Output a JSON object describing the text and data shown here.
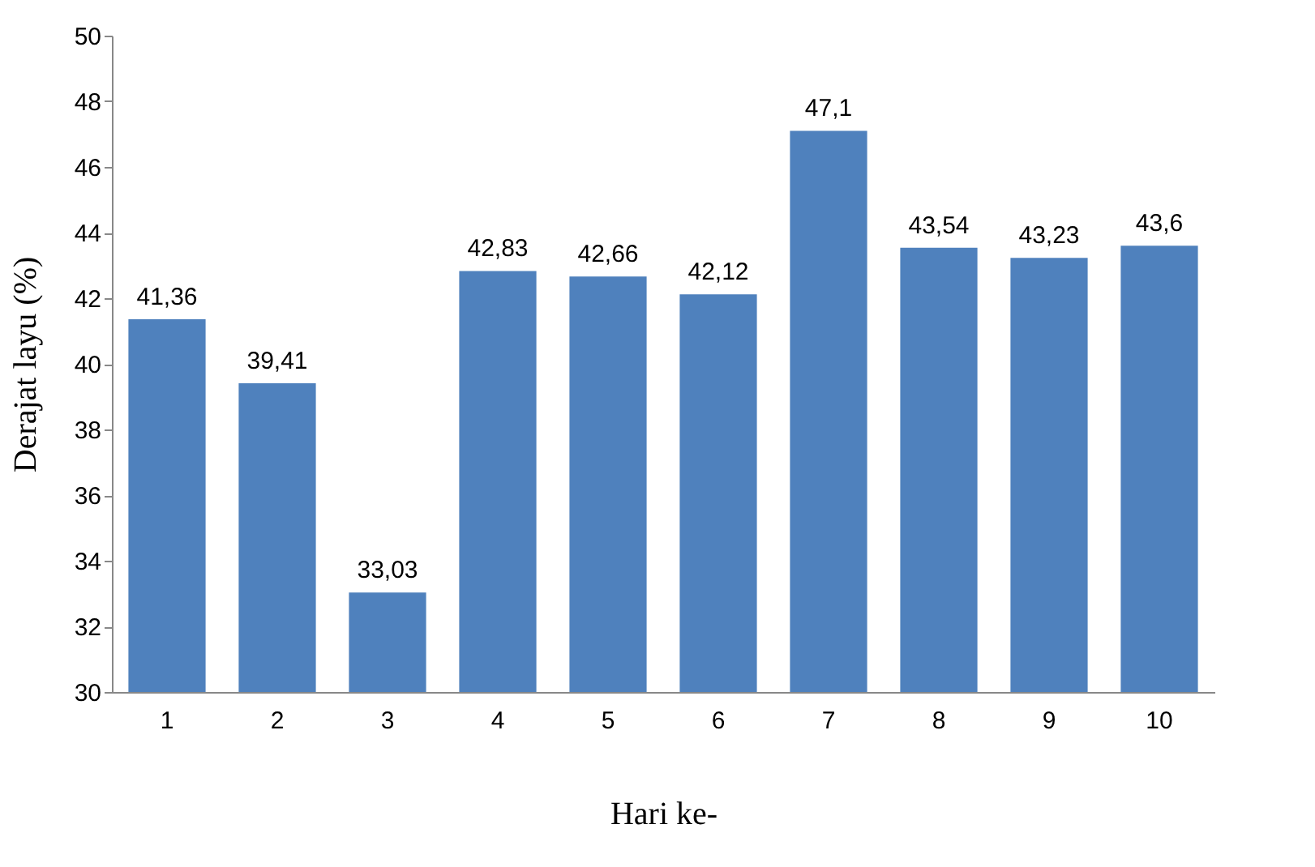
{
  "chart_data": {
    "type": "bar",
    "xlabel": "Hari ke-",
    "ylabel": "Derajat layu (%)",
    "categories": [
      "1",
      "2",
      "3",
      "4",
      "5",
      "6",
      "7",
      "8",
      "9",
      "10"
    ],
    "values": [
      41.36,
      39.41,
      33.03,
      42.83,
      42.66,
      42.12,
      47.1,
      43.54,
      43.23,
      43.6
    ],
    "value_labels": [
      "41,36",
      "39,41",
      "33,03",
      "42,83",
      "42,66",
      "42,12",
      "47,1",
      "43,54",
      "43,23",
      "43,6"
    ],
    "color": "#4f81bd",
    "ylim": [
      30,
      50
    ],
    "yticks": [
      30,
      32,
      34,
      36,
      38,
      40,
      42,
      44,
      46,
      48,
      50
    ],
    "grid": false
  }
}
